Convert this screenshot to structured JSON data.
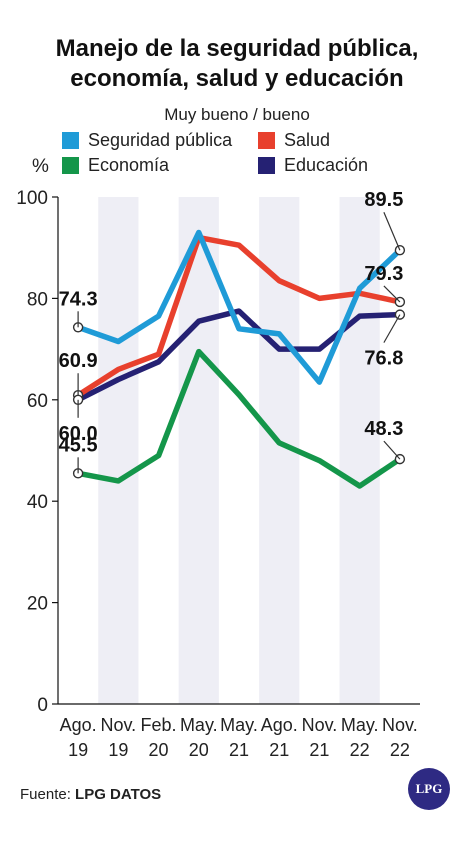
{
  "title_line1": "Manejo de la seguridad pública,",
  "title_line2": "economía, salud y educación",
  "subtitle": "Muy bueno / bueno",
  "unit": "%",
  "source_label": "Fuente:",
  "source_name": "LPG DATOS",
  "logo_text": "LPG",
  "chart_data": {
    "type": "line",
    "categories": [
      [
        "Ago.",
        "19"
      ],
      [
        "Nov.",
        "19"
      ],
      [
        "Feb.",
        "20"
      ],
      [
        "May.",
        "20"
      ],
      [
        "May.",
        "21"
      ],
      [
        "Ago.",
        "21"
      ],
      [
        "Nov.",
        "21"
      ],
      [
        "May.",
        "22"
      ],
      [
        "Nov.",
        "22"
      ]
    ],
    "ylim": [
      0,
      100
    ],
    "yticks": [
      0,
      20,
      40,
      60,
      80,
      100
    ],
    "shaded_columns": [
      1,
      3,
      5,
      7
    ],
    "series": [
      {
        "name": "Seguridad pública",
        "color": "#1f9bd7",
        "values": [
          74.3,
          71.5,
          76.5,
          93.0,
          74.0,
          73.0,
          63.5,
          82.0,
          89.5
        ]
      },
      {
        "name": "Salud",
        "color": "#e8402d",
        "values": [
          60.9,
          66.0,
          69.0,
          92.0,
          90.5,
          83.5,
          80.0,
          81.0,
          79.3
        ]
      },
      {
        "name": "Economía",
        "color": "#14964a",
        "values": [
          45.5,
          44.0,
          49.0,
          69.5,
          61.0,
          51.5,
          48.0,
          43.0,
          48.3
        ]
      },
      {
        "name": "Educación",
        "color": "#252173",
        "values": [
          60.0,
          64.0,
          67.5,
          75.5,
          77.5,
          70.0,
          70.0,
          76.5,
          76.8
        ]
      }
    ],
    "annotations": [
      {
        "text": "74.3",
        "bold": false
      },
      {
        "text": "60.9",
        "bold": false
      },
      {
        "text": "45.5",
        "bold": false
      },
      {
        "text": "60.0",
        "bold": false
      },
      {
        "text": "89.5",
        "bold": true
      },
      {
        "text": "79.3",
        "bold": true
      },
      {
        "text": "76.8",
        "bold": true
      },
      {
        "text": "48.3",
        "bold": true
      }
    ]
  }
}
